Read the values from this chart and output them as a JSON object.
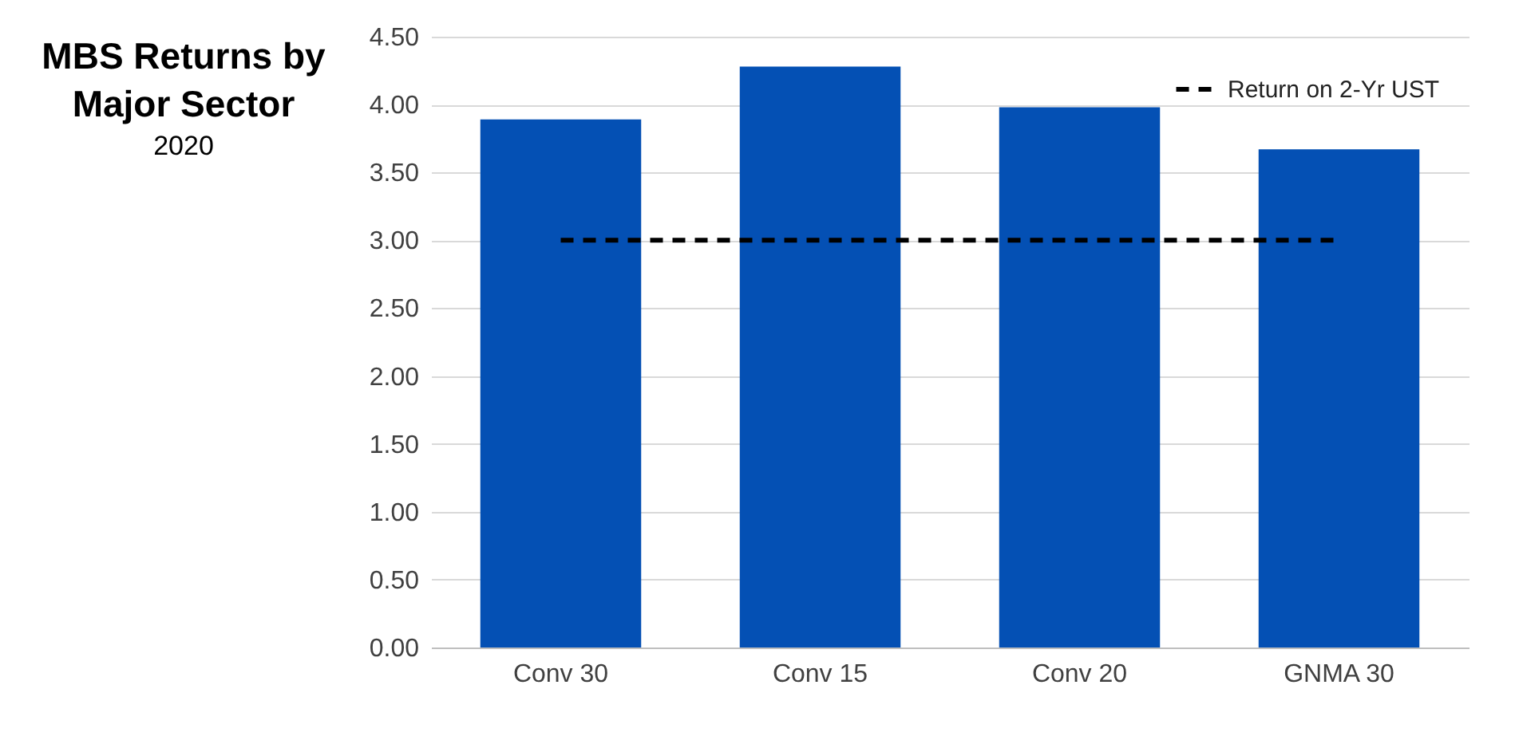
{
  "chart_data": {
    "type": "bar",
    "title": "MBS Returns by Major Sector",
    "subtitle": "2020",
    "categories": [
      "Conv 30",
      "Conv 15",
      "Conv 20",
      "GNMA 30"
    ],
    "series": [
      {
        "color": "#0450b4",
        "values": [
          3.89,
          4.28,
          3.98,
          3.67
        ]
      },
      {
        "type": "line",
        "name": "Return on 2-Yr UST",
        "color": "#000000",
        "line_style": "dashed",
        "values": [
          3.0,
          3.0,
          3.0,
          3.0
        ]
      }
    ],
    "ylim": [
      0,
      4.5
    ],
    "yticks": [
      {
        "value": 0,
        "label": "0.00"
      },
      {
        "value": 0.5,
        "label": "0.50"
      },
      {
        "value": 1,
        "label": "1.00"
      },
      {
        "value": 1.5,
        "label": "1.50"
      },
      {
        "value": 2,
        "label": "2.00"
      },
      {
        "value": 2.5,
        "label": "2.50"
      },
      {
        "value": 3,
        "label": "3.00"
      },
      {
        "value": 3.5,
        "label": "3.50"
      },
      {
        "value": 4,
        "label": "4.00"
      },
      {
        "value": 4.5,
        "label": "4.50"
      }
    ],
    "grid": "y",
    "legend": "top right"
  }
}
